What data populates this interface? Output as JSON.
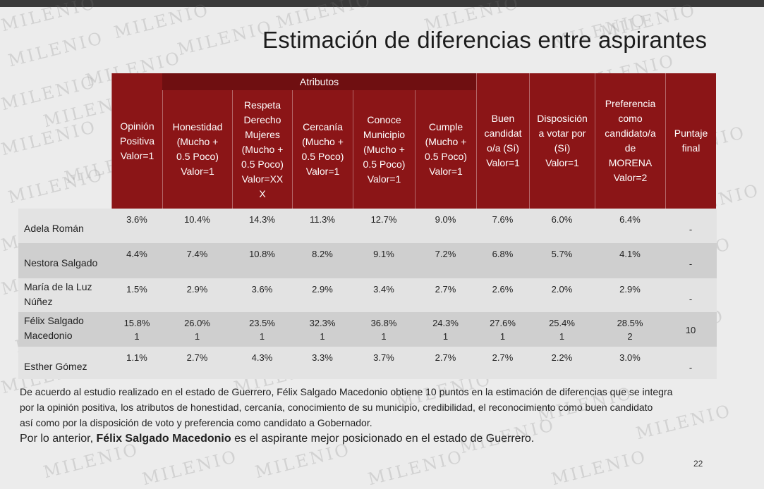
{
  "title": "Estimación de diferencias entre aspirantes",
  "watermark": "MILENIO",
  "colors": {
    "header_red": "#8b1517",
    "header_dark": "#6f0f11",
    "row_light": "#e3e3e3",
    "row_dark": "#cfcfcf"
  },
  "table": {
    "group_header": "Atributos",
    "columns": [
      "Opinión\nPositiva\nValor=1",
      "Honestidad\n(Mucho +\n0.5 Poco)\nValor=1",
      "Respeta\nDerecho\nMujeres\n(Mucho +\n0.5 Poco)\nValor=XX\nX",
      "Cercanía\n(Mucho +\n0.5 Poco)\nValor=1",
      "Conoce\nMunicipio\n(Mucho +\n0.5 Poco)\nValor=1",
      "Cumple\n(Mucho +\n0.5 Poco)\nValor=1",
      "Buen\ncandidat\no/a (Sí)\nValor=1",
      "Disposición\na votar por\n(Sí)\nValor=1",
      "Preferencia\ncomo\ncandidato/a\nde\nMORENA\nValor=2",
      "Puntaje\nfinal"
    ],
    "rows": [
      {
        "name": "Adela Román",
        "values": [
          "3.6%",
          "10.4%",
          "14.3%",
          "11.3%",
          "12.7%",
          "9.0%",
          "7.6%",
          "6.0%",
          "6.4%",
          "-"
        ]
      },
      {
        "name": "Nestora Salgado",
        "values": [
          "4.4%",
          "7.4%",
          "10.8%",
          "8.2%",
          "9.1%",
          "7.2%",
          "6.8%",
          "5.7%",
          "4.1%",
          "-"
        ]
      },
      {
        "name": "María de la Luz\nNúñez",
        "values": [
          "1.5%",
          "2.9%",
          "3.6%",
          "2.9%",
          "3.4%",
          "2.7%",
          "2.6%",
          "2.0%",
          "2.9%",
          "-"
        ]
      },
      {
        "name": "Félix Salgado\nMacedonio",
        "values": [
          "15.8%\n1",
          "26.0%\n1",
          "23.5%\n1",
          "32.3%\n1",
          "36.8%\n1",
          "24.3%\n1",
          "27.6%\n1",
          "25.4%\n1",
          "28.5%\n2",
          "10"
        ]
      },
      {
        "name": "Esther Gómez",
        "values": [
          "1.1%",
          "2.7%",
          "4.3%",
          "3.3%",
          "3.7%",
          "2.7%",
          "2.7%",
          "2.2%",
          "3.0%",
          "-"
        ]
      }
    ]
  },
  "footer": {
    "line1": "De acuerdo al estudio realizado en el estado de Guerrero, Félix Salgado Macedonio obtiene 10 puntos en la estimación de diferencias que se integra",
    "line2": "por la opinión positiva, los atributos de honestidad, cercanía, conocimiento de su municipio, credibilidad, el reconocimiento como buen candidato",
    "line3": "así como por la disposición de voto y preferencia como candidato a Gobernador.",
    "line4_pre": "Por lo anterior, ",
    "line4_bold": "Félix Salgado Macedonio",
    "line4_post": "  es el aspirante mejor posicionado en el estado de Guerrero."
  },
  "page_number": "22"
}
